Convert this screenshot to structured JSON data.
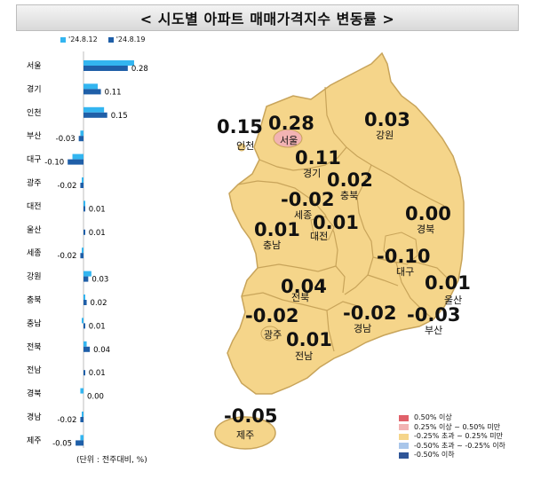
{
  "title": "< 시도별 아파트 매매가격지수 변동률 >",
  "unit_note": "(단위 : 전주대비, %)",
  "chart_data": {
    "type": "bar",
    "orientation": "horizontal",
    "categories": [
      "서울",
      "경기",
      "인천",
      "부산",
      "대구",
      "광주",
      "대전",
      "울산",
      "세종",
      "강원",
      "충북",
      "충남",
      "전북",
      "전남",
      "경북",
      "경남",
      "제주"
    ],
    "series": [
      {
        "name": "'24.8.12",
        "color": "#33b5f0",
        "values": [
          0.32,
          0.09,
          0.13,
          -0.02,
          -0.07,
          -0.01,
          0.01,
          0.0,
          -0.01,
          0.05,
          0.01,
          -0.01,
          0.02,
          0.0,
          -0.02,
          -0.01,
          -0.02
        ]
      },
      {
        "name": "'24.8.19",
        "color": "#1f5fa8",
        "values": [
          0.28,
          0.11,
          0.15,
          -0.03,
          -0.1,
          -0.02,
          0.01,
          0.01,
          -0.02,
          0.03,
          0.02,
          0.01,
          0.04,
          0.01,
          0.0,
          -0.02,
          -0.05
        ]
      }
    ],
    "value_labels": [
      "0.28",
      "0.11",
      "0.15",
      "-0.03",
      "-0.10",
      "-0.02",
      "0.01",
      "0.01",
      "-0.02",
      "0.03",
      "0.02",
      "0.01",
      "0.04",
      "0.01",
      "0.00",
      "-0.02",
      "-0.05"
    ]
  },
  "map": {
    "regions": [
      {
        "id": "seoul",
        "name": "서울",
        "value": "0.28",
        "fill": "#f2b3b3"
      },
      {
        "id": "gyeonggi",
        "name": "경기",
        "value": "0.11",
        "fill": "#f5d58a"
      },
      {
        "id": "incheon",
        "name": "인천",
        "value": "0.15",
        "fill": "#f5d58a"
      },
      {
        "id": "gangwon",
        "name": "강원",
        "value": "0.03",
        "fill": "#f5d58a"
      },
      {
        "id": "chungbuk",
        "name": "충북",
        "value": "0.02",
        "fill": "#f5d58a"
      },
      {
        "id": "sejong",
        "name": "세종",
        "value": "-0.02",
        "fill": "#f5d58a"
      },
      {
        "id": "chungnam",
        "name": "충남",
        "value": "0.01",
        "fill": "#f5d58a"
      },
      {
        "id": "daejeon",
        "name": "대전",
        "value": "0.01",
        "fill": "#f5d58a"
      },
      {
        "id": "gyeongbuk",
        "name": "경북",
        "value": "0.00",
        "fill": "#f5d58a"
      },
      {
        "id": "daegu",
        "name": "대구",
        "value": "-0.10",
        "fill": "#f5d58a"
      },
      {
        "id": "jeonbuk",
        "name": "전북",
        "value": "0.04",
        "fill": "#f5d58a"
      },
      {
        "id": "ulsan",
        "name": "울산",
        "value": "0.01",
        "fill": "#f5d58a"
      },
      {
        "id": "gwangju",
        "name": "광주",
        "value": "-0.02",
        "fill": "#f5d58a"
      },
      {
        "id": "gyeongnam",
        "name": "경남",
        "value": "-0.02",
        "fill": "#f5d58a"
      },
      {
        "id": "busan",
        "name": "부산",
        "value": "-0.03",
        "fill": "#f5d58a"
      },
      {
        "id": "jeonnam",
        "name": "전남",
        "value": "0.01",
        "fill": "#f5d58a"
      },
      {
        "id": "jeju",
        "name": "제주",
        "value": "-0.05",
        "fill": "#f5d58a"
      }
    ],
    "legend": [
      {
        "label": "0.50% 이상",
        "color": "#e0606a"
      },
      {
        "label": "0.25% 이상 ~ 0.50% 미만",
        "color": "#f2b3b3"
      },
      {
        "label": "-0.25% 초과 ~ 0.25% 미만",
        "color": "#f5d58a"
      },
      {
        "label": "-0.50% 초과 ~ -0.25% 이하",
        "color": "#a9c6ea"
      },
      {
        "label": "-0.50% 이하",
        "color": "#2f5597"
      }
    ]
  }
}
